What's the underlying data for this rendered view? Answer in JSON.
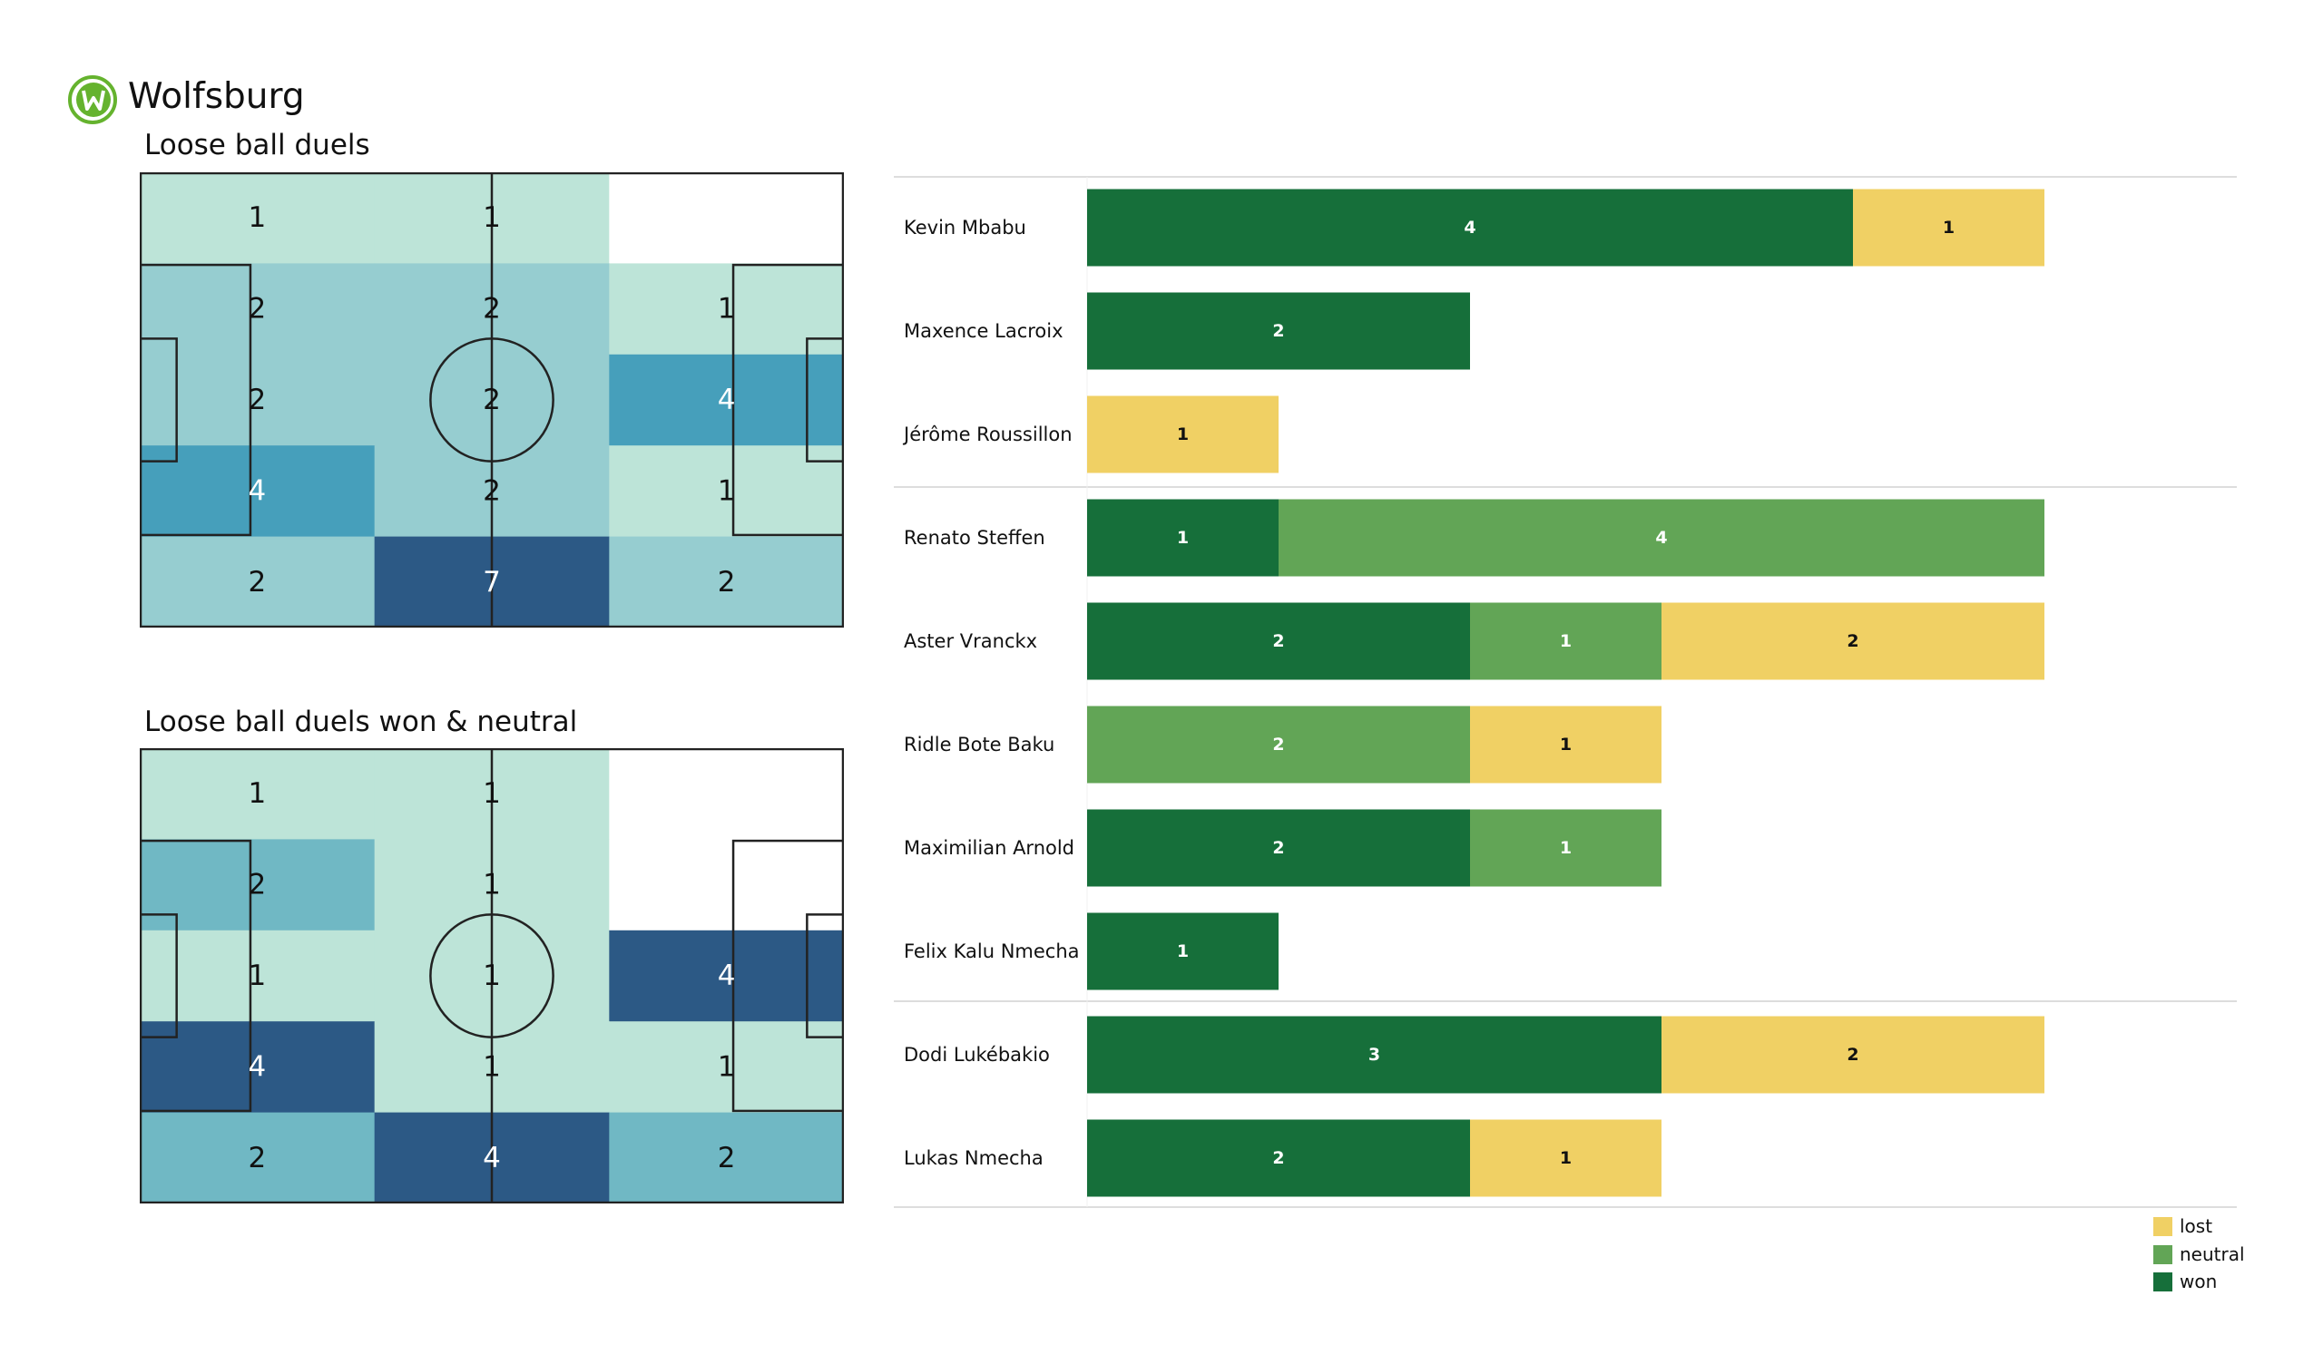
{
  "header": {
    "team": "Wolfsburg",
    "logo_icon": "wolfsburg-crest"
  },
  "chart_data": [
    {
      "type": "heatmap",
      "title": "Loose ball duels",
      "grid_rows": 5,
      "grid_cols": 3,
      "values": [
        [
          1,
          1,
          null
        ],
        [
          2,
          2,
          1
        ],
        [
          2,
          2,
          4
        ],
        [
          4,
          2,
          1
        ],
        [
          2,
          7,
          2
        ]
      ],
      "colors": {
        "1": "#bde4d8",
        "2": "#96cdd0",
        "4": "#469fbb",
        "7": "#2c5985"
      }
    },
    {
      "type": "heatmap",
      "title": "Loose ball duels won & neutral",
      "grid_rows": 5,
      "grid_cols": 3,
      "values": [
        [
          1,
          1,
          null
        ],
        [
          2,
          1,
          null
        ],
        [
          1,
          1,
          4
        ],
        [
          4,
          1,
          1
        ],
        [
          2,
          4,
          2
        ]
      ],
      "colors": {
        "1": "#bde4d8",
        "2": "#70b8c4",
        "4": "#2c5985"
      }
    },
    {
      "type": "bar",
      "orientation": "horizontal",
      "stacked": true,
      "categories": [
        "Kevin Mbabu",
        "Maxence Lacroix",
        "Jérôme Roussillon",
        "Renato Steffen",
        "Aster Vranckx",
        "Ridle Bote Baku",
        "Maximilian Arnold",
        "Felix Kalu Nmecha",
        "Dodi Lukébakio",
        "Lukas Nmecha"
      ],
      "groups": [
        [
          0,
          1,
          2
        ],
        [
          3,
          4,
          5,
          6,
          7
        ],
        [
          8,
          9
        ]
      ],
      "series": [
        {
          "name": "won",
          "color": "#166f3a",
          "values": [
            4,
            2,
            0,
            1,
            2,
            0,
            2,
            1,
            3,
            2
          ]
        },
        {
          "name": "neutral",
          "color": "#62a556",
          "values": [
            0,
            0,
            0,
            4,
            1,
            2,
            1,
            0,
            0,
            0
          ]
        },
        {
          "name": "lost",
          "color": "#f0d064",
          "values": [
            1,
            0,
            1,
            0,
            2,
            1,
            0,
            0,
            2,
            1
          ]
        }
      ],
      "legend": {
        "placement": "bottom-right",
        "order": [
          "lost",
          "neutral",
          "won"
        ]
      }
    }
  ]
}
